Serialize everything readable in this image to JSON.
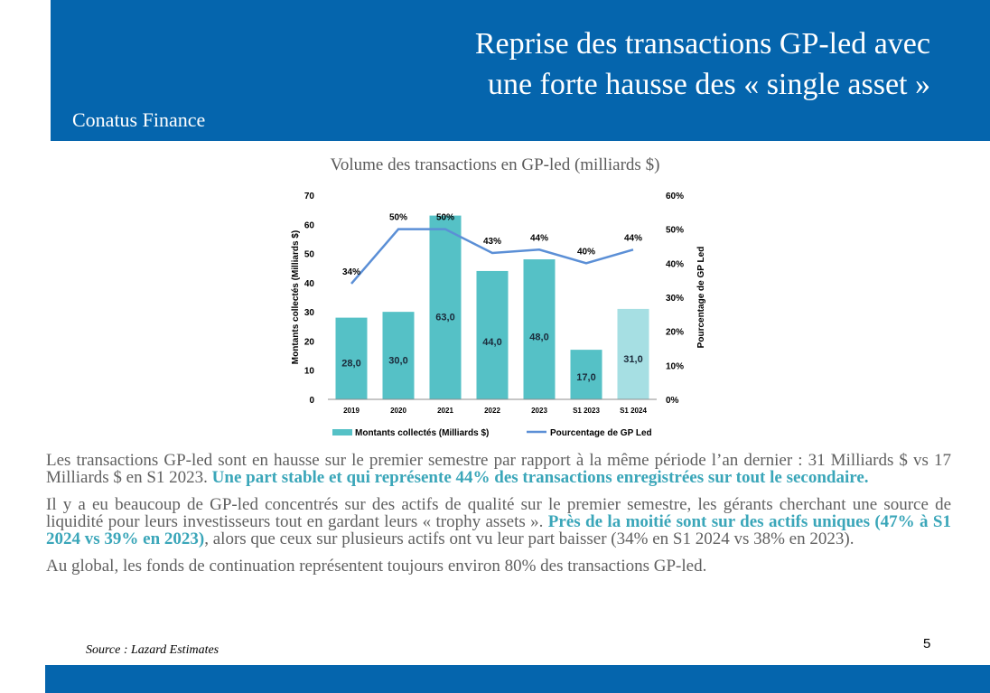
{
  "header": {
    "title_line1": "Reprise des transactions GP-led avec",
    "title_line2": "une forte hausse des « single asset »",
    "brand": "Conatus Finance"
  },
  "colors": {
    "header_band": "#0565ad",
    "bar": "#55c1c6",
    "bar_last": "#a6dfe3",
    "line": "#5b8fd6",
    "highlight": "#3aa6b9"
  },
  "chart_data": {
    "type": "bar",
    "title": "Volume des transactions en GP-led (milliards $)",
    "categories": [
      "2019",
      "2020",
      "2021",
      "2022",
      "2023",
      "S1 2023",
      "S1 2024"
    ],
    "series": [
      {
        "name": "Montants collectés (Milliards $)",
        "type": "bar",
        "axis": "left",
        "values": [
          28.0,
          30.0,
          63.0,
          44.0,
          48.0,
          17.0,
          31.0
        ],
        "labels": [
          "28,0",
          "30,0",
          "63,0",
          "44,0",
          "48,0",
          "17,0",
          "31,0"
        ]
      },
      {
        "name": "Pourcentage de GP Led",
        "type": "line",
        "axis": "right",
        "values": [
          34,
          50,
          50,
          43,
          44,
          40,
          44
        ],
        "labels": [
          "34%",
          "50%",
          "50%",
          "43%",
          "44%",
          "40%",
          "44%"
        ]
      }
    ],
    "ylabel": "Montants collectés (Milliards $)",
    "ylabel_right": "Pourcentage de GP Led",
    "ylim": [
      0,
      70
    ],
    "yticks": [
      "0",
      "10",
      "20",
      "30",
      "40",
      "50",
      "60",
      "70"
    ],
    "ylim_right": [
      0,
      60
    ],
    "yticks_right": [
      "0%",
      "10%",
      "20%",
      "30%",
      "40%",
      "50%",
      "60%"
    ],
    "legend": "bottom",
    "grid": false
  },
  "body": {
    "p1_text": "Les transactions GP-led sont en hausse sur le premier semestre par rapport à la même période l’an dernier : 31 Milliards $ vs 17 Milliards $ en S1 2023. ",
    "p1_highlight": "Une part stable et qui représente 44% des transactions enregistrées sur tout le secondaire.",
    "p2_text": "Il y a eu beaucoup de GP-led concentrés sur des actifs de qualité sur le premier semestre, les gérants cherchant une source de liquidité pour leurs investisseurs tout en gardant leurs « trophy assets ». ",
    "p2_highlight": "Près de la moitié sont sur des actifs uniques (47% à S1 2024 vs 39% en 2023)",
    "p2_tail": ", alors que ceux sur plusieurs actifs ont vu leur part baisser (34% en S1 2024 vs 38% en 2023).",
    "p3_text": "Au global, les fonds de continuation représentent toujours environ 80% des transactions GP-led."
  },
  "footer": {
    "source": "Source : Lazard Estimates",
    "page_number": "5"
  }
}
